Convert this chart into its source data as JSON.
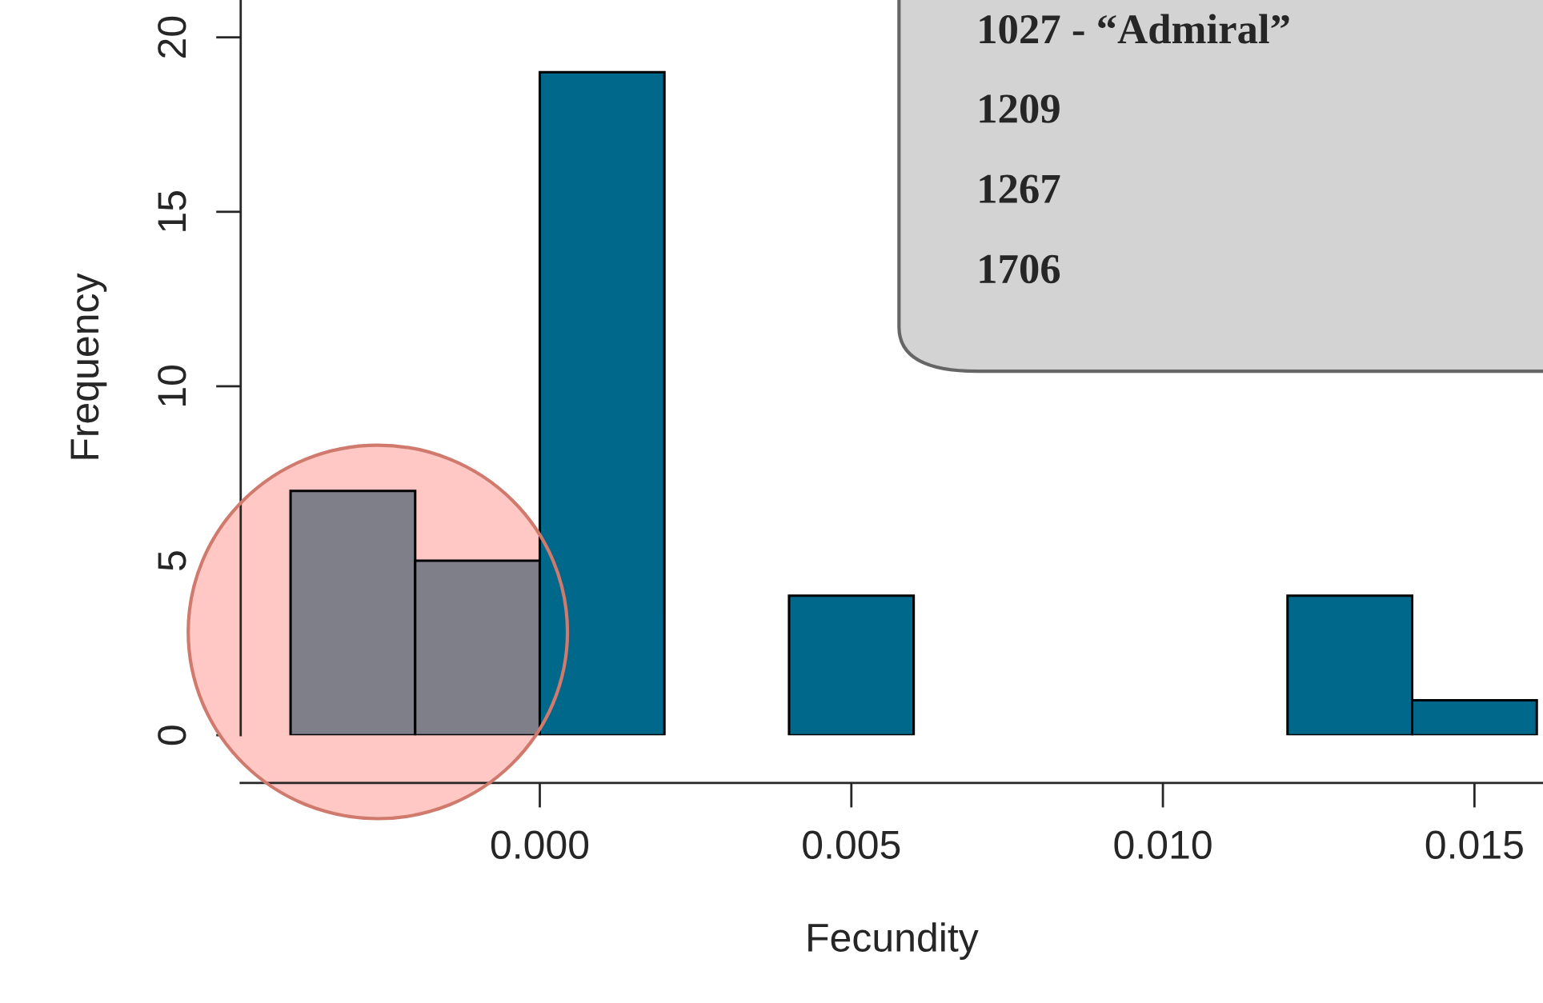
{
  "chart_data": {
    "type": "histogram",
    "xlabel": "Fecundity",
    "ylabel": "Frequency",
    "bins": [
      -0.004,
      -0.002,
      0.0,
      0.002,
      0.004,
      0.006,
      0.008,
      0.01,
      0.012,
      0.014,
      0.016
    ],
    "values": [
      7,
      5,
      19,
      null,
      4,
      null,
      null,
      null,
      4,
      1
    ],
    "colors": [
      "#7f7f8a",
      "#7f7f8a",
      "#00688b",
      "#00688b",
      "#00688b",
      "#00688b",
      "#00688b",
      "#00688b",
      "#00688b",
      "#00688b"
    ],
    "xlim": [
      -0.0048,
      0.0161
    ],
    "ylim": [
      0,
      21.07
    ],
    "xticks": [
      {
        "value": 0,
        "label": "0.000"
      },
      {
        "value": 0.005,
        "label": "0.005"
      },
      {
        "value": 0.01,
        "label": "0.010"
      },
      {
        "value": 0.015,
        "label": "0.015"
      }
    ],
    "yticks": [
      0,
      5,
      10,
      15,
      20
    ],
    "annotations": [
      "1027 - “Admiral”",
      "1209",
      "1267",
      "1706"
    ],
    "grid": false,
    "legend": false
  }
}
